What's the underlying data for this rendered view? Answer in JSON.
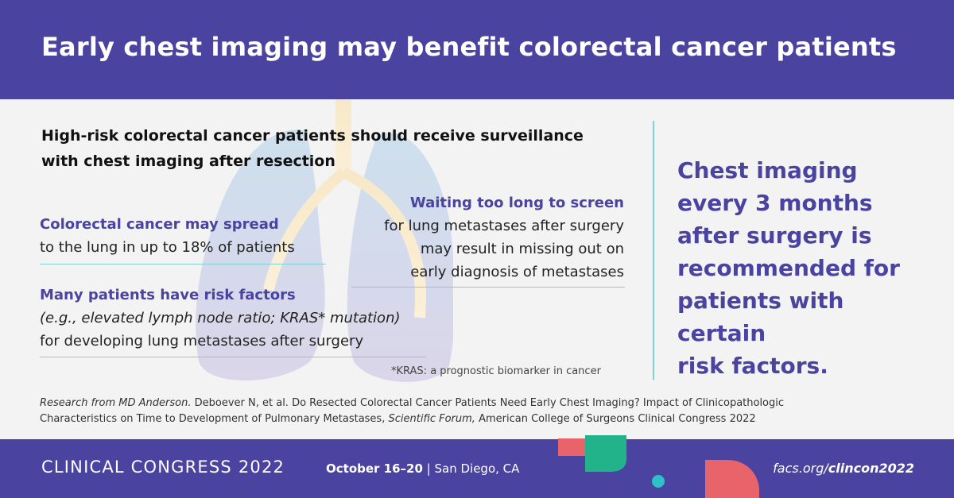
{
  "header": {
    "title": "Early chest imaging may benefit colorectal cancer patients"
  },
  "main": {
    "subhead": [
      "High-risk colorectal cancer patients should receive surveillance",
      "with chest imaging after resection"
    ],
    "fact1": {
      "highlight": "Colorectal cancer may spread",
      "text": "to the lung in up to 18% of patients"
    },
    "fact2": {
      "highlight": "Many patients have risk factors",
      "italic": "(e.g., elevated lymph node ratio; KRAS* mutation)",
      "text": "for developing lung metastases after surgery"
    },
    "fact3": {
      "highlight": "Waiting too long to screen",
      "lines": [
        "for lung metastases after surgery",
        "may result in missing out on",
        "early diagnosis of metastases"
      ]
    },
    "footnote": "*KRAS: a prognostic biomarker in cancer",
    "callout": [
      "Chest imaging",
      "every 3 months",
      "after surgery is",
      "recommended for",
      "patients with certain",
      "risk factors."
    ],
    "citation": {
      "source": "Research from MD Anderson.",
      "line1": " Deboever N, et al. Do Resected Colorectal Cancer Patients Need Early Chest Imaging? Impact of Clinicopathologic",
      "line2a": "Characteristics on Time to Development of Pulmonary Metastases, ",
      "journal": "Scientific Forum,",
      "line2b": " American College of Surgeons Clinical Congress 2022"
    }
  },
  "footer": {
    "event": "CLINICAL CONGRESS 2022",
    "dates": "October 16–20",
    "separator": " | ",
    "location": "San Diego, CA",
    "url_prefix": "facs.org/",
    "url_bold": "clincon2022"
  },
  "colors": {
    "brand_purple": "#4a43a0",
    "divider_teal": "#7fd0d4",
    "background": "#f3f3f3"
  },
  "icons": [
    "lungs-illustration",
    "decorative-shapes"
  ]
}
